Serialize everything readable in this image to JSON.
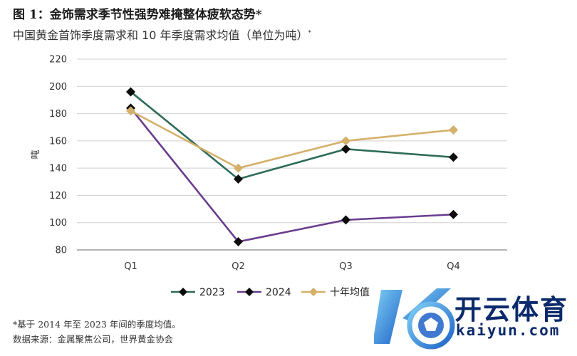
{
  "header": {
    "title": "图 1：金饰需求季节性强势难掩整体疲软态势*",
    "subtitle": "中国黄金首饰季度需求和 10 年季度需求均值（单位为吨）",
    "subtitle_mark": "*"
  },
  "chart_data": {
    "type": "line",
    "categories": [
      "Q1",
      "Q2",
      "Q3",
      "Q4"
    ],
    "ylabel": "吨",
    "ylim": [
      80,
      220
    ],
    "yticks": [
      80,
      100,
      120,
      140,
      160,
      180,
      200,
      220
    ],
    "grid": true,
    "legend_position": "bottom-left",
    "series": [
      {
        "name": "2023",
        "values": [
          196,
          132,
          154,
          148
        ],
        "color": "#2e6b5a",
        "marker": "diamond"
      },
      {
        "name": "2024",
        "values": [
          184,
          86,
          102,
          106
        ],
        "color": "#6a3d8f",
        "marker": "diamond"
      },
      {
        "name": "十年均值",
        "values": [
          182,
          140,
          160,
          168
        ],
        "color": "#d4b06a",
        "marker": "diamond"
      }
    ]
  },
  "footnotes": {
    "note": "*基于 2014 年至 2023 年间的季度均值。",
    "source": "数据来源：金属聚焦公司，世界黄金协会"
  },
  "watermark": {
    "name_cn": "开云体育",
    "name_en": "kaiyun.com"
  }
}
